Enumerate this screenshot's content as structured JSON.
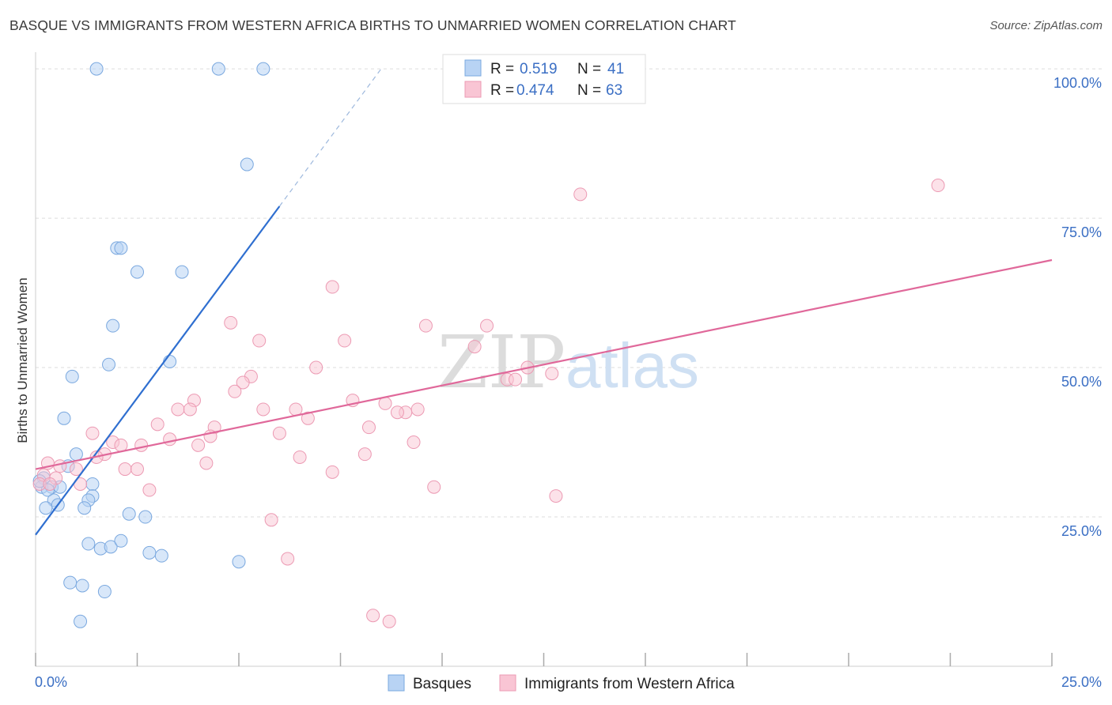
{
  "title": "BASQUE VS IMMIGRANTS FROM WESTERN AFRICA BIRTHS TO UNMARRIED WOMEN CORRELATION CHART",
  "source": "Source: ZipAtlas.com",
  "watermark": {
    "part1": "ZIP",
    "part2": "atlas"
  },
  "colors": {
    "basques_fill": "#b8d3f4",
    "basques_stroke": "#7aa8df",
    "basques_line": "#2f6fd0",
    "immigrants_fill": "#f9c5d4",
    "immigrants_stroke": "#ec9ab3",
    "immigrants_line": "#e0689a",
    "grid": "#dddddd",
    "tick_text": "#3b6fc4"
  },
  "legend": {
    "rows": [
      {
        "r_label": "R = ",
        "r_value": "0.519",
        "n_label": "N = ",
        "n_value": "41"
      },
      {
        "r_label": "R = ",
        "r_value": "0.474",
        "n_label": "N = ",
        "n_value": "63"
      }
    ]
  },
  "chart_data": {
    "type": "scatter",
    "title": "BASQUE VS IMMIGRANTS FROM WESTERN AFRICA BIRTHS TO UNMARRIED WOMEN CORRELATION CHART",
    "xlabel": "",
    "ylabel": "Births to Unmarried Women",
    "xlim": [
      0,
      25
    ],
    "ylim": [
      0,
      102
    ],
    "x_ticks": [
      0,
      2.5,
      5,
      7.5,
      10,
      12.5,
      15,
      17.5,
      20,
      22.5,
      25
    ],
    "x_tick_labels": [
      {
        "x": 0,
        "label": "0.0%"
      },
      {
        "x": 25,
        "label": "25.0%"
      }
    ],
    "y_ticks": [
      25,
      50,
      75,
      100
    ],
    "y_tick_labels": [
      "25.0%",
      "50.0%",
      "75.0%",
      "100.0%"
    ],
    "grid": true,
    "legend_position": "top-center",
    "series": [
      {
        "name": "Basques",
        "trend": {
          "x0": 0,
          "y0": 22,
          "x1": 6,
          "y1": 77,
          "dash_to_x": 8.5,
          "dash_to_y": 100
        },
        "points": [
          {
            "x": 1.5,
            "y": 100
          },
          {
            "x": 4.5,
            "y": 100
          },
          {
            "x": 5.6,
            "y": 100
          },
          {
            "x": 5.2,
            "y": 84
          },
          {
            "x": 2.0,
            "y": 70
          },
          {
            "x": 2.1,
            "y": 70
          },
          {
            "x": 2.5,
            "y": 66
          },
          {
            "x": 3.6,
            "y": 66
          },
          {
            "x": 1.9,
            "y": 57
          },
          {
            "x": 1.8,
            "y": 50.5
          },
          {
            "x": 3.3,
            "y": 51
          },
          {
            "x": 0.9,
            "y": 48.5
          },
          {
            "x": 0.7,
            "y": 41.5
          },
          {
            "x": 1.0,
            "y": 35.5
          },
          {
            "x": 0.8,
            "y": 33.5
          },
          {
            "x": 0.2,
            "y": 31.5
          },
          {
            "x": 0.15,
            "y": 30
          },
          {
            "x": 0.4,
            "y": 30
          },
          {
            "x": 0.6,
            "y": 30
          },
          {
            "x": 0.3,
            "y": 29.5
          },
          {
            "x": 1.4,
            "y": 30.5
          },
          {
            "x": 1.4,
            "y": 28.5
          },
          {
            "x": 1.3,
            "y": 27.8
          },
          {
            "x": 0.45,
            "y": 27.8
          },
          {
            "x": 0.55,
            "y": 27
          },
          {
            "x": 0.25,
            "y": 26.5
          },
          {
            "x": 1.2,
            "y": 26.5
          },
          {
            "x": 2.3,
            "y": 25.5
          },
          {
            "x": 2.7,
            "y": 25
          },
          {
            "x": 1.3,
            "y": 20.5
          },
          {
            "x": 1.6,
            "y": 19.7
          },
          {
            "x": 1.85,
            "y": 20
          },
          {
            "x": 2.1,
            "y": 21
          },
          {
            "x": 2.8,
            "y": 19
          },
          {
            "x": 3.1,
            "y": 18.5
          },
          {
            "x": 5.0,
            "y": 17.5
          },
          {
            "x": 0.85,
            "y": 14
          },
          {
            "x": 1.15,
            "y": 13.5
          },
          {
            "x": 1.7,
            "y": 12.5
          },
          {
            "x": 1.1,
            "y": 7.5
          },
          {
            "x": 0.1,
            "y": 31
          }
        ]
      },
      {
        "name": "Immigrants from Western Africa",
        "trend": {
          "x0": 0,
          "y0": 33,
          "x1": 25,
          "y1": 68
        },
        "points": [
          {
            "x": 22.2,
            "y": 80.5
          },
          {
            "x": 13.4,
            "y": 79
          },
          {
            "x": 7.3,
            "y": 63.5
          },
          {
            "x": 4.8,
            "y": 57.5
          },
          {
            "x": 9.6,
            "y": 57
          },
          {
            "x": 11.1,
            "y": 57
          },
          {
            "x": 5.5,
            "y": 54.5
          },
          {
            "x": 7.6,
            "y": 54.5
          },
          {
            "x": 10.8,
            "y": 53.5
          },
          {
            "x": 6.9,
            "y": 50
          },
          {
            "x": 12.1,
            "y": 50
          },
          {
            "x": 12.7,
            "y": 49
          },
          {
            "x": 5.3,
            "y": 48.5
          },
          {
            "x": 5.1,
            "y": 47.5
          },
          {
            "x": 11.6,
            "y": 48
          },
          {
            "x": 11.8,
            "y": 48
          },
          {
            "x": 4.9,
            "y": 46
          },
          {
            "x": 3.9,
            "y": 44.5
          },
          {
            "x": 7.8,
            "y": 44.5
          },
          {
            "x": 8.6,
            "y": 44
          },
          {
            "x": 3.5,
            "y": 43
          },
          {
            "x": 3.8,
            "y": 43
          },
          {
            "x": 5.6,
            "y": 43
          },
          {
            "x": 6.4,
            "y": 43
          },
          {
            "x": 9.4,
            "y": 43
          },
          {
            "x": 9.1,
            "y": 42.5
          },
          {
            "x": 8.9,
            "y": 42.5
          },
          {
            "x": 6.7,
            "y": 41.5
          },
          {
            "x": 3.0,
            "y": 40.5
          },
          {
            "x": 4.4,
            "y": 40
          },
          {
            "x": 8.2,
            "y": 40
          },
          {
            "x": 1.4,
            "y": 39
          },
          {
            "x": 6.0,
            "y": 39
          },
          {
            "x": 4.3,
            "y": 38.5
          },
          {
            "x": 3.3,
            "y": 38
          },
          {
            "x": 1.9,
            "y": 37.5
          },
          {
            "x": 2.1,
            "y": 37
          },
          {
            "x": 2.6,
            "y": 37
          },
          {
            "x": 4.0,
            "y": 37
          },
          {
            "x": 9.3,
            "y": 37.5
          },
          {
            "x": 1.7,
            "y": 35.5
          },
          {
            "x": 1.5,
            "y": 35
          },
          {
            "x": 6.5,
            "y": 35
          },
          {
            "x": 8.1,
            "y": 35.5
          },
          {
            "x": 4.2,
            "y": 34
          },
          {
            "x": 0.3,
            "y": 34
          },
          {
            "x": 0.6,
            "y": 33.5
          },
          {
            "x": 1.0,
            "y": 33
          },
          {
            "x": 2.2,
            "y": 33
          },
          {
            "x": 2.5,
            "y": 33
          },
          {
            "x": 7.3,
            "y": 32.5
          },
          {
            "x": 0.2,
            "y": 32
          },
          {
            "x": 0.5,
            "y": 31.5
          },
          {
            "x": 0.1,
            "y": 30.5
          },
          {
            "x": 1.1,
            "y": 30.5
          },
          {
            "x": 2.8,
            "y": 29.5
          },
          {
            "x": 9.8,
            "y": 30
          },
          {
            "x": 12.8,
            "y": 28.5
          },
          {
            "x": 5.8,
            "y": 24.5
          },
          {
            "x": 6.2,
            "y": 18
          },
          {
            "x": 8.3,
            "y": 8.5
          },
          {
            "x": 8.7,
            "y": 7.5
          },
          {
            "x": 0.35,
            "y": 30.5
          }
        ]
      }
    ]
  }
}
